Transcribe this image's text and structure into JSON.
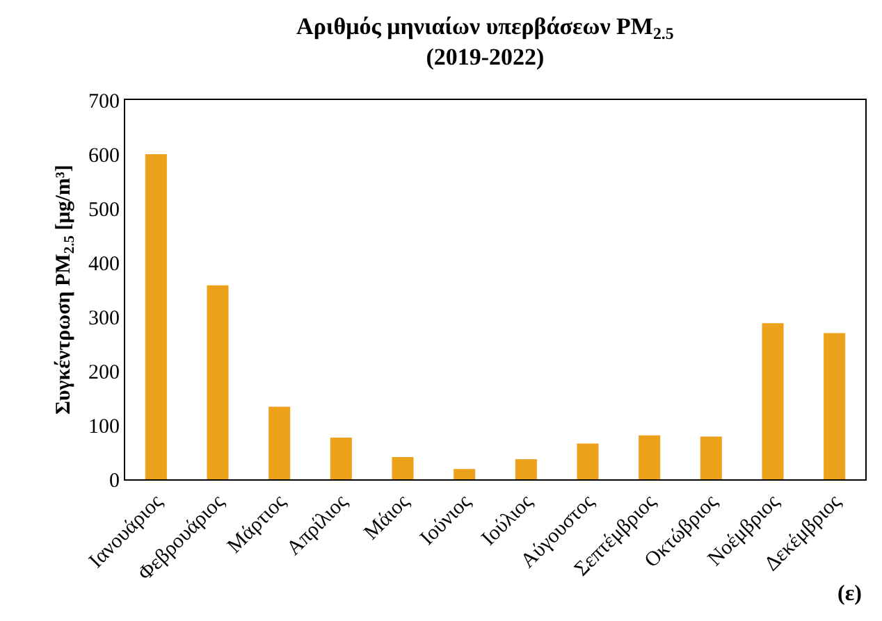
{
  "chart_data": {
    "type": "bar",
    "title": "Αριθμός μηνιαίων υπερβάσεων PM$_{2.5}$\n(2019-2022)",
    "ylabel": "Συγκέντρωση PM$_{2.5}$ [μg/m³]",
    "categories": [
      "Ιανουάριος",
      "Φεβρουάριος",
      "Μάρτιος",
      "Απρίλιος",
      "Μάιος",
      "Ιούνιος",
      "Ιούλιος",
      "Αύγουστος",
      "Σεπτέμβριος",
      "Οκτώβριος",
      "Νοέμβριος",
      "Δεκέμβριος"
    ],
    "values": [
      600,
      358,
      134,
      77,
      41,
      19,
      37,
      66,
      81,
      79,
      288,
      270
    ],
    "color": "#eca11b",
    "ylim": [
      0,
      700
    ],
    "yticks": [
      0,
      100,
      200,
      300,
      400,
      500,
      600,
      700
    ],
    "grid": false,
    "legend": false,
    "annotations": [
      "(ε)"
    ]
  }
}
